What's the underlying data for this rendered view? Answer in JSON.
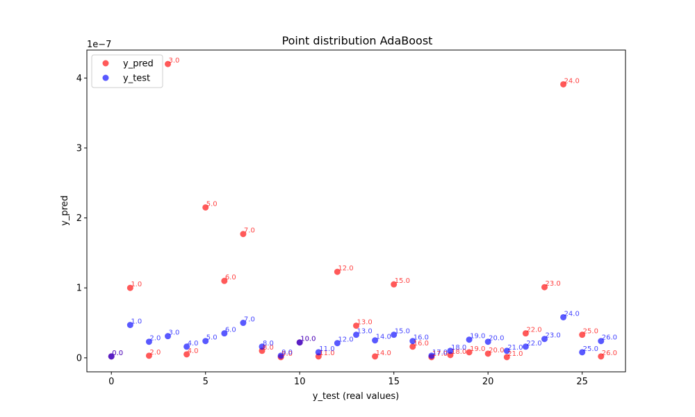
{
  "chart_data": {
    "type": "scatter",
    "title": "Point distribution AdaBoost",
    "xlabel": "y_test (real values)",
    "ylabel": "y_pred",
    "y_offset_text": "1e−7",
    "xlim": [
      -1.3,
      27.3
    ],
    "ylim": [
      -0.2,
      4.4
    ],
    "x_ticks": [
      0,
      5,
      10,
      15,
      20,
      25
    ],
    "y_ticks": [
      0,
      1,
      2,
      3,
      4
    ],
    "grid": false,
    "legend_position": "top-left",
    "legend": [
      "y_pred",
      "y_test"
    ],
    "series": [
      {
        "name": "y_pred",
        "color": "#ff0000",
        "x": [
          0,
          1,
          2,
          3,
          4,
          5,
          6,
          7,
          8,
          9,
          10,
          11,
          12,
          13,
          14,
          15,
          16,
          17,
          18,
          19,
          20,
          21,
          22,
          23,
          24,
          25,
          26
        ],
        "values": [
          0.02,
          1.0,
          0.03,
          4.2,
          0.05,
          2.15,
          1.1,
          1.77,
          0.1,
          0.01,
          0.22,
          0.02,
          1.23,
          0.46,
          0.02,
          1.05,
          0.16,
          0.01,
          0.04,
          0.08,
          0.06,
          0.01,
          0.35,
          1.01,
          3.91,
          0.33,
          0.02
        ],
        "labels": [
          "0.0",
          "1.0",
          "2.0",
          "3.0",
          "4.0",
          "5.0",
          "6.0",
          "7.0",
          "8.0",
          "9.0",
          "10.0",
          "11.0",
          "12.0",
          "13.0",
          "14.0",
          "15.0",
          "16.0",
          "17.0",
          "18.0",
          "19.0",
          "20.0",
          "21.0",
          "22.0",
          "23.0",
          "24.0",
          "25.0",
          "26.0"
        ]
      },
      {
        "name": "y_test",
        "color": "#0000ff",
        "x": [
          0,
          1,
          2,
          3,
          4,
          5,
          6,
          7,
          8,
          9,
          10,
          11,
          12,
          13,
          14,
          15,
          16,
          17,
          18,
          19,
          20,
          21,
          22,
          23,
          24,
          25,
          26
        ],
        "values": [
          0.02,
          0.47,
          0.23,
          0.31,
          0.16,
          0.24,
          0.35,
          0.5,
          0.16,
          0.03,
          0.22,
          0.08,
          0.21,
          0.33,
          0.25,
          0.33,
          0.24,
          0.03,
          0.1,
          0.26,
          0.23,
          0.1,
          0.16,
          0.27,
          0.58,
          0.08,
          0.24
        ],
        "labels": [
          "0.0",
          "1.0",
          "2.0",
          "3.0",
          "4.0",
          "5.0",
          "6.0",
          "7.0",
          "8.0",
          "9.0",
          "10.0",
          "11.0",
          "12.0",
          "13.0",
          "14.0",
          "15.0",
          "16.0",
          "17.0",
          "18.0",
          "19.0",
          "20.0",
          "21.0",
          "22.0",
          "23.0",
          "24.0",
          "25.0",
          "26.0"
        ]
      }
    ]
  }
}
